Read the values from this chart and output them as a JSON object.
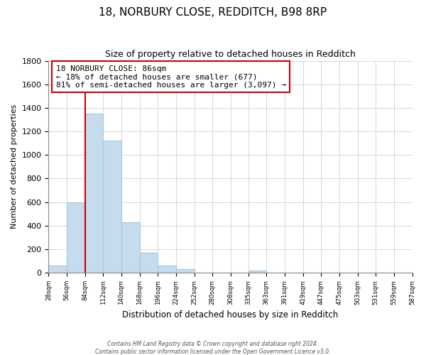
{
  "title": "18, NORBURY CLOSE, REDDITCH, B98 8RP",
  "subtitle": "Size of property relative to detached houses in Redditch",
  "xlabel": "Distribution of detached houses by size in Redditch",
  "ylabel": "Number of detached properties",
  "bin_edges": [
    28,
    56,
    84,
    112,
    140,
    168,
    196,
    224,
    252,
    280,
    308,
    335,
    363,
    391,
    419,
    447,
    475,
    503,
    531,
    559,
    587
  ],
  "bin_labels": [
    "28sqm",
    "56sqm",
    "84sqm",
    "112sqm",
    "140sqm",
    "168sqm",
    "196sqm",
    "224sqm",
    "252sqm",
    "280sqm",
    "308sqm",
    "335sqm",
    "363sqm",
    "391sqm",
    "419sqm",
    "447sqm",
    "475sqm",
    "503sqm",
    "531sqm",
    "559sqm",
    "587sqm"
  ],
  "bar_heights": [
    60,
    600,
    1350,
    1120,
    430,
    170,
    60,
    30,
    0,
    0,
    0,
    20,
    0,
    0,
    0,
    0,
    0,
    0,
    0,
    0
  ],
  "bar_color": "#c5dcee",
  "bar_edge_color": "#a8c8e0",
  "property_line_x": 84,
  "property_line_color": "#cc0000",
  "annotation_line1": "18 NORBURY CLOSE: 86sqm",
  "annotation_line2": "← 18% of detached houses are smaller (677)",
  "annotation_line3": "81% of semi-detached houses are larger (3,097) →",
  "annotation_box_color": "#ffffff",
  "annotation_box_edge": "#cc0000",
  "ylim": [
    0,
    1800
  ],
  "yticks": [
    0,
    200,
    400,
    600,
    800,
    1000,
    1200,
    1400,
    1600,
    1800
  ],
  "footer_line1": "Contains HM Land Registry data © Crown copyright and database right 2024.",
  "footer_line2": "Contains public sector information licensed under the Open Government Licence v3.0.",
  "background_color": "#ffffff",
  "grid_color": "#d0d8e0"
}
